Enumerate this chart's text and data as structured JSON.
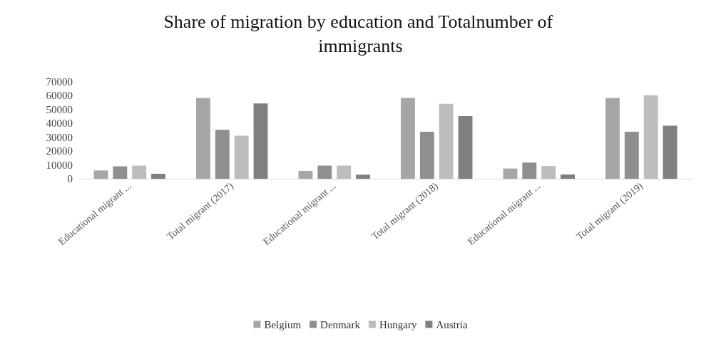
{
  "chart_data": {
    "type": "bar",
    "title": "Share of migration by education and Totalnumber of immigrants",
    "categories": [
      "Educational migrant ...",
      "Total migrant (2017)",
      "Educational migrant ...",
      "Total migrant (2018)",
      "Educational migrant ...",
      "Total migrant (2019)"
    ],
    "series": [
      {
        "name": "Belgium",
        "color": "#a6a6a6",
        "values": [
          6000,
          58400,
          5700,
          58400,
          7400,
          58400
        ]
      },
      {
        "name": "Denmark",
        "color": "#8f8f8f",
        "values": [
          9000,
          35400,
          9500,
          34000,
          11700,
          34000
        ]
      },
      {
        "name": "Hungary",
        "color": "#bdbdbd",
        "values": [
          9500,
          31100,
          9500,
          54200,
          9200,
          60400
        ]
      },
      {
        "name": "Austria",
        "color": "#7f7f7f",
        "values": [
          3600,
          54400,
          3000,
          45300,
          3100,
          38300
        ]
      }
    ],
    "ylim": [
      0,
      70000
    ],
    "yticks": [
      0,
      10000,
      20000,
      30000,
      40000,
      50000,
      60000,
      70000
    ],
    "grid": false,
    "legend": "bottom"
  }
}
